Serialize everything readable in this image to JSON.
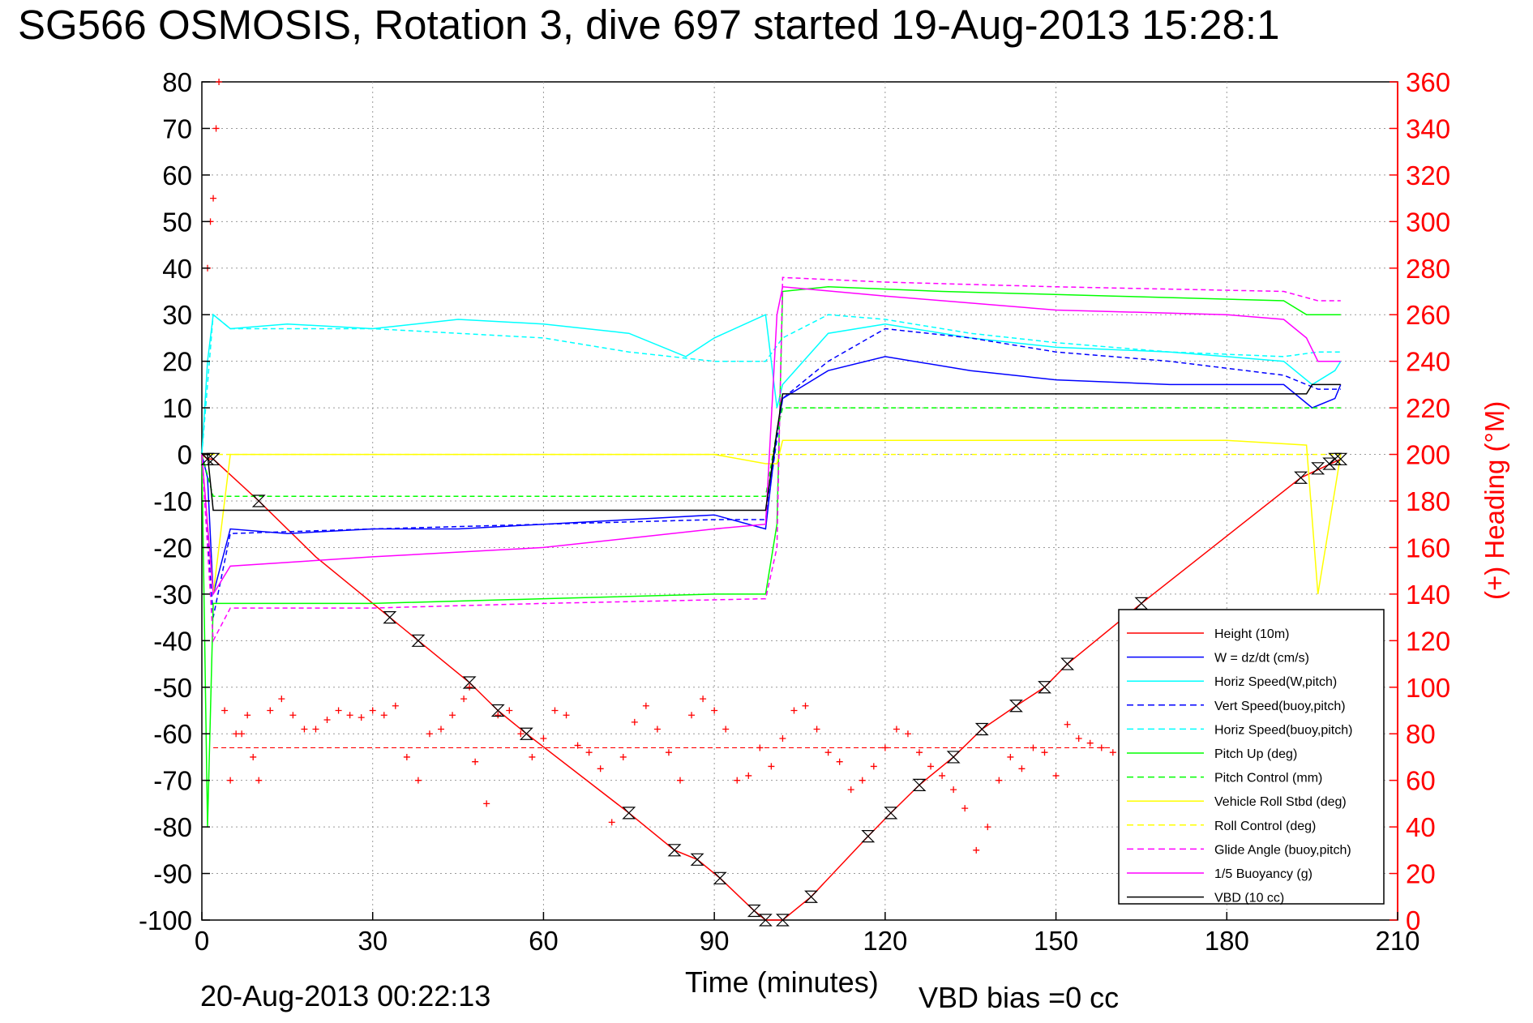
{
  "chart_data": {
    "type": "line",
    "title": "SG566 OSMOSIS, Rotation 3, dive 697 started 19-Aug-2013 15:28:1",
    "xlabel": "Time (minutes)",
    "ylabel": "",
    "ylabel_right": "(+) Heading (°M)",
    "xlim": [
      0,
      210
    ],
    "ylim": [
      -100,
      80
    ],
    "ylim_right": [
      0,
      360
    ],
    "x_ticks": [
      "0",
      "30",
      "60",
      "90",
      "120",
      "150",
      "180",
      "210"
    ],
    "y_ticks": [
      "80",
      "70",
      "60",
      "50",
      "40",
      "30",
      "20",
      "10",
      "0",
      "-10",
      "-20",
      "-30",
      "-40",
      "-50",
      "-60",
      "-70",
      "-80",
      "-90",
      "-100"
    ],
    "y_right_ticks": [
      "360",
      "340",
      "320",
      "300",
      "280",
      "260",
      "240",
      "220",
      "200",
      "180",
      "160",
      "140",
      "120",
      "100",
      "80",
      "60",
      "40",
      "20",
      "0"
    ],
    "grid": true,
    "legend_position": "bottom-right",
    "footer_left": "20-Aug-2013 00:22:13",
    "footer_right": "VBD bias =0 cc",
    "series": [
      {
        "name": "Height (10m)",
        "color": "#ff0000",
        "style": "solid",
        "x": [
          0,
          1,
          2,
          10,
          20,
          33,
          38,
          47,
          52,
          57,
          75,
          83,
          87,
          91,
          97,
          99,
          102,
          107,
          117,
          121,
          126,
          132,
          137,
          143,
          148,
          152,
          165,
          193,
          200
        ],
        "y": [
          0,
          -1,
          -1,
          -10,
          -22,
          -35,
          -40,
          -49,
          -55,
          -60,
          -77,
          -85,
          -87,
          -91,
          -98,
          -100,
          -100,
          -95,
          -82,
          -77,
          -71,
          -65,
          -59,
          -54,
          -50,
          -45,
          -32,
          -5,
          -1
        ]
      },
      {
        "name": "W = dz/dt (cm/s)",
        "color": "#0000ff",
        "style": "solid",
        "x": [
          0,
          1,
          2,
          5,
          15,
          30,
          45,
          60,
          75,
          90,
          99,
          101,
          102,
          110,
          120,
          135,
          150,
          170,
          190,
          195,
          199,
          200
        ],
        "y": [
          0,
          -5,
          -30,
          -16,
          -17,
          -16,
          -16,
          -15,
          -14,
          -13,
          -16,
          5,
          12,
          18,
          21,
          18,
          16,
          15,
          15,
          10,
          12,
          15
        ]
      },
      {
        "name": "Horiz Speed(W,pitch)",
        "color": "#00ffff",
        "style": "solid",
        "x": [
          0,
          1,
          2,
          5,
          15,
          30,
          45,
          60,
          75,
          85,
          90,
          99,
          101,
          102,
          110,
          120,
          135,
          150,
          170,
          190,
          195,
          199,
          200
        ],
        "y": [
          0,
          20,
          30,
          27,
          28,
          27,
          29,
          28,
          26,
          21,
          25,
          30,
          10,
          15,
          26,
          28,
          25,
          23,
          22,
          20,
          15,
          18,
          20
        ]
      },
      {
        "name": "Vert Speed(buoy,pitch)",
        "color": "#0000ff",
        "style": "dashed",
        "x": [
          0,
          2,
          5,
          30,
          60,
          90,
          99,
          102,
          110,
          120,
          135,
          150,
          170,
          190,
          196,
          200
        ],
        "y": [
          0,
          -35,
          -17,
          -16,
          -15,
          -14,
          -14,
          12,
          20,
          27,
          25,
          22,
          20,
          17,
          14,
          14
        ]
      },
      {
        "name": "Horiz Speed(buoy,pitch)",
        "color": "#00ffff",
        "style": "dashed",
        "x": [
          0,
          2,
          5,
          30,
          60,
          75,
          90,
          99,
          102,
          110,
          120,
          135,
          150,
          170,
          190,
          196,
          200
        ],
        "y": [
          0,
          30,
          27,
          27,
          25,
          22,
          20,
          20,
          25,
          30,
          29,
          26,
          24,
          22,
          21,
          22,
          22
        ]
      },
      {
        "name": "Pitch Up (deg)",
        "color": "#00ff00",
        "style": "solid",
        "x": [
          0,
          1,
          2,
          5,
          15,
          30,
          60,
          90,
          99,
          101,
          102,
          110,
          130,
          160,
          190,
          194,
          199,
          200
        ],
        "y": [
          0,
          -80,
          -32,
          -32,
          -32,
          -32,
          -31,
          -30,
          -30,
          -15,
          35,
          36,
          35,
          34,
          33,
          30,
          30,
          30
        ]
      },
      {
        "name": "Pitch Control (mm)",
        "color": "#00ff00",
        "style": "dashed",
        "x": [
          0,
          2,
          5,
          99,
          101,
          102,
          200
        ],
        "y": [
          0,
          -9,
          -9,
          -9,
          5,
          10,
          10
        ]
      },
      {
        "name": "Vehicle Roll Stbd (deg)",
        "color": "#ffff00",
        "style": "solid",
        "x": [
          0,
          2,
          5,
          15,
          30,
          60,
          90,
          99,
          101,
          102,
          120,
          150,
          180,
          194,
          196,
          200
        ],
        "y": [
          0,
          -30,
          0,
          0,
          0,
          0,
          0,
          -2,
          -2,
          3,
          3,
          3,
          3,
          2,
          -30,
          0
        ]
      },
      {
        "name": "Roll Control (deg)",
        "color": "#ffff00",
        "style": "dashed",
        "x": [
          0,
          2,
          5,
          99,
          102,
          200
        ],
        "y": [
          0,
          0,
          0,
          0,
          0,
          0
        ]
      },
      {
        "name": "Glide Angle (buoy,pitch)",
        "color": "#ff00ff",
        "style": "dashed",
        "x": [
          0,
          2,
          5,
          30,
          60,
          99,
          101,
          102,
          120,
          150,
          190,
          196,
          200
        ],
        "y": [
          0,
          -40,
          -33,
          -33,
          -32,
          -31,
          -20,
          38,
          37,
          36,
          35,
          33,
          33
        ]
      },
      {
        "name": "1/5 Buoyancy (g)",
        "color": "#ff00ff",
        "style": "solid",
        "x": [
          0,
          2,
          5,
          30,
          60,
          90,
          99,
          101,
          102,
          120,
          150,
          180,
          190,
          194,
          196,
          200
        ],
        "y": [
          0,
          -30,
          -24,
          -22,
          -20,
          -16,
          -15,
          30,
          36,
          34,
          31,
          30,
          29,
          25,
          20,
          20
        ]
      },
      {
        "name": "VBD (10 cc)",
        "color": "#000000",
        "style": "solid",
        "x": [
          0,
          1,
          2,
          5,
          99,
          101,
          102,
          194,
          195,
          200
        ],
        "y": [
          0,
          0,
          -12,
          -12,
          -12,
          5,
          13,
          13,
          15,
          15
        ]
      }
    ],
    "scatter_series": [
      {
        "name": "Heading",
        "axis": "right",
        "marker": "+",
        "color": "#ff0000",
        "x": [
          1,
          1.5,
          2,
          2.5,
          3,
          4,
          5,
          6,
          7,
          8,
          9,
          10,
          12,
          14,
          16,
          18,
          20,
          22,
          24,
          26,
          28,
          30,
          32,
          34,
          36,
          38,
          40,
          42,
          44,
          46,
          47,
          48,
          50,
          52,
          54,
          56,
          58,
          60,
          62,
          64,
          66,
          68,
          70,
          72,
          74,
          76,
          78,
          80,
          82,
          84,
          86,
          88,
          90,
          92,
          94,
          96,
          98,
          100,
          102,
          104,
          106,
          108,
          110,
          112,
          114,
          116,
          118,
          120,
          122,
          124,
          126,
          128,
          130,
          132,
          134,
          136,
          138,
          140,
          142,
          144,
          146,
          148,
          150,
          152,
          154,
          156,
          158,
          160
        ],
        "y": [
          280,
          300,
          310,
          340,
          360,
          90,
          60,
          80,
          80,
          88,
          70,
          60,
          90,
          95,
          88,
          82,
          82,
          86,
          90,
          88,
          87,
          90,
          88,
          92,
          70,
          60,
          80,
          82,
          88,
          95,
          100,
          68,
          50,
          88,
          90,
          80,
          70,
          78,
          90,
          88,
          75,
          72,
          65,
          42,
          70,
          85,
          92,
          82,
          72,
          60,
          88,
          95,
          90,
          82,
          60,
          62,
          74,
          66,
          78,
          90,
          92,
          82,
          72,
          68,
          56,
          60,
          66,
          74,
          82,
          80,
          72,
          66,
          62,
          56,
          48,
          30,
          40,
          60,
          70,
          65,
          74,
          72,
          62,
          84,
          78,
          76,
          74,
          72
        ]
      },
      {
        "name": "Heading mean",
        "axis": "right",
        "style": "dashed",
        "color": "#ff0000",
        "x": [
          2,
          160
        ],
        "y": [
          74,
          74
        ]
      }
    ],
    "markers": {
      "name": "VBD/pump markers",
      "symbol": "hourglass",
      "color": "#000000",
      "x": [
        1,
        2,
        10,
        33,
        38,
        47,
        52,
        57,
        75,
        83,
        87,
        91,
        97,
        99,
        102,
        107,
        117,
        121,
        126,
        132,
        137,
        143,
        148,
        152,
        165,
        193,
        196,
        198,
        199,
        200
      ],
      "y": [
        -1,
        -1,
        -10,
        -35,
        -40,
        -49,
        -55,
        -60,
        -77,
        -85,
        -87,
        -91,
        -98,
        -100,
        -100,
        -95,
        -82,
        -77,
        -71,
        -65,
        -59,
        -54,
        -50,
        -45,
        -32,
        -5,
        -3,
        -2,
        -1,
        -1
      ]
    }
  }
}
